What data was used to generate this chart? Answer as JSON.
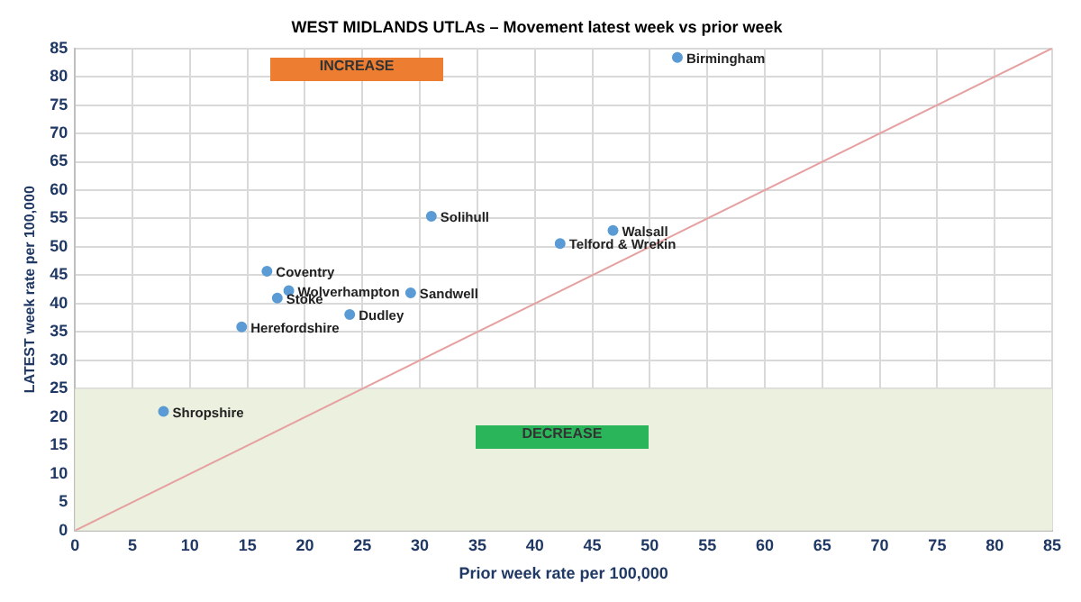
{
  "chart_data": {
    "type": "scatter",
    "title": "WEST MIDLANDS UTLAs – Movement latest week vs prior week",
    "xlabel": "Prior week rate per 100,000",
    "ylabel": "LATEST week rate per 100,000",
    "annotations": [
      "INCREASE",
      "DECREASE"
    ],
    "series": [
      {
        "color": "#5b9bd5",
        "marker": "circle",
        "x": [
          52.4,
          46.8,
          42.2,
          31.0,
          16.7,
          18.6,
          17.6,
          29.2,
          23.9,
          14.5,
          7.7
        ],
        "values": [
          83.4,
          52.9,
          50.6,
          55.4,
          45.7,
          42.3,
          41.0,
          41.9,
          38.1,
          35.9,
          21.0
        ],
        "value_labels": [
          "Birmingham",
          "Walsall",
          "Telford & Wrekin",
          "Solihull",
          "Coventry",
          "Wolverhampton",
          "Stoke",
          "Sandwell",
          "Dudley",
          "Herefordshire",
          "Shropshire"
        ]
      },
      {
        "type": "line",
        "color": "#e6a0a0",
        "marker": "none",
        "line_style": "solid",
        "x": [
          0,
          85
        ],
        "values": [
          0,
          85
        ]
      }
    ],
    "bands": [
      {
        "axis": "y",
        "from": 0,
        "to": 25,
        "color": "#ebf1de"
      }
    ],
    "xlim": [
      0,
      85
    ],
    "xticks": [
      0,
      5,
      10,
      15,
      20,
      25,
      30,
      35,
      40,
      45,
      50,
      55,
      60,
      65,
      70,
      75,
      80,
      85
    ],
    "ylim": [
      0,
      85
    ],
    "yticks": [
      0,
      5,
      10,
      15,
      20,
      25,
      30,
      35,
      40,
      45,
      50,
      55,
      60,
      65,
      70,
      75,
      80,
      85
    ],
    "grid": true,
    "legend": false
  }
}
